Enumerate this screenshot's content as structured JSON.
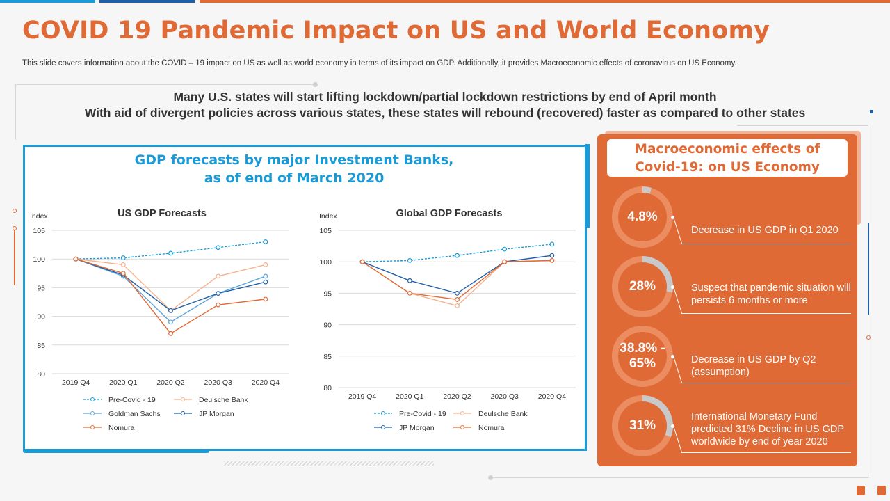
{
  "slide": {
    "title": "COVID 19 Pandemic Impact on US and World Economy",
    "subtitle": "This slide covers information about the COVID – 19 impact on US as well as world economy in terms of its impact on GDP. Additionally, it provides Macroeconomic effects of coronavirus on US Economy.",
    "headline_1": "Many U.S. states will start lifting lockdown/partial lockdown restrictions by end of April month",
    "headline_2": "With aid of divergent policies across various states, these states will rebound (recovered) faster as compared to other states"
  },
  "gdp_panel": {
    "title_line1": "GDP forecasts by major Investment Banks,",
    "title_line2": "as of end of March 2020"
  },
  "colors": {
    "orange": "#e06a35",
    "blue": "#1a9bd7",
    "pre_covid": "#1a9bd7",
    "deutsche": "#f4b28f",
    "goldman": "#5ba3d9",
    "jp_morgan": "#1f5fa8",
    "nomura": "#e06a35"
  },
  "chart_data": [
    {
      "type": "line",
      "title": "US GDP Forecasts",
      "ylabel": "Index",
      "xlabel": "",
      "ylim": [
        80,
        105
      ],
      "yticks": [
        80,
        85,
        90,
        95,
        100,
        105
      ],
      "categories": [
        "2019 Q4",
        "2020 Q1",
        "2020 Q2",
        "2020 Q3",
        "2020 Q4"
      ],
      "series": [
        {
          "name": "Pre-Covid - 19",
          "style": "dashed",
          "color": "#1a9bd7",
          "values": [
            100,
            100.2,
            101,
            102,
            103
          ]
        },
        {
          "name": "Deulsche Bank",
          "color": "#f4b28f",
          "values": [
            100,
            99,
            91,
            97,
            99
          ]
        },
        {
          "name": "Goldman Sachs",
          "color": "#5ba3d9",
          "values": [
            100,
            97,
            89,
            94,
            97
          ]
        },
        {
          "name": "JP Morgan",
          "color": "#1f5fa8",
          "values": [
            100,
            97.2,
            91,
            94,
            96
          ]
        },
        {
          "name": "Nomura",
          "color": "#e06a35",
          "values": [
            100,
            97.5,
            87,
            92,
            93
          ]
        }
      ],
      "legend": "bottom"
    },
    {
      "type": "line",
      "title": "Global GDP Forecasts",
      "ylabel": "Index",
      "xlabel": "",
      "ylim": [
        80,
        105
      ],
      "yticks": [
        80,
        85,
        90,
        95,
        100,
        105
      ],
      "categories": [
        "2019 Q4",
        "2020 Q1",
        "2020 Q2",
        "2020 Q3",
        "2020 Q4"
      ],
      "series": [
        {
          "name": "Pre-Covid - 19",
          "style": "dashed",
          "color": "#1a9bd7",
          "values": [
            100,
            100.2,
            101,
            102,
            102.8
          ]
        },
        {
          "name": "Deulsche Bank",
          "color": "#f4b28f",
          "values": [
            100,
            95,
            93,
            100,
            100.2
          ]
        },
        {
          "name": "JP Morgan",
          "color": "#1f5fa8",
          "values": [
            100,
            97,
            95,
            100,
            101
          ]
        },
        {
          "name": "Nomura",
          "color": "#e06a35",
          "values": [
            100,
            95,
            94,
            100,
            100.2
          ]
        }
      ],
      "legend": "bottom"
    }
  ],
  "macro": {
    "title_line1": "Macroeconomic effects of",
    "title_line2": "Covid-19: on US Economy",
    "stats": [
      {
        "value": "4.8%",
        "value_line2": "",
        "percent": 4.8,
        "desc": "Decrease in US GDP in Q1 2020"
      },
      {
        "value": "28%",
        "value_line2": "",
        "percent": 28,
        "desc": "Suspect that pandemic situation will persists 6 months or more"
      },
      {
        "value": "38.8% -",
        "value_line2": "65%",
        "percent": 0,
        "desc": "Decrease in US GDP by Q2 (assumption)"
      },
      {
        "value": "31%",
        "value_line2": "",
        "percent": 31,
        "desc": "International Monetary Fund predicted 31% Decline in US GDP worldwide by end of year 2020"
      }
    ]
  }
}
